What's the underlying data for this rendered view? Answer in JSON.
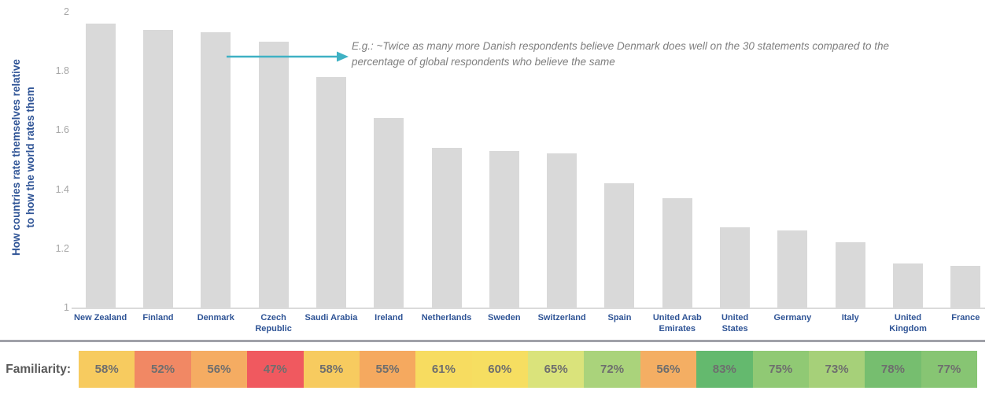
{
  "chart_data": {
    "type": "bar",
    "title": "",
    "ylabel_line1": "How countries rate themselves relative",
    "ylabel_line2": "to how the world rates them",
    "ylim": [
      1,
      2
    ],
    "yticks": [
      "2",
      "1.8",
      "1.6",
      "1.4",
      "1.2",
      "1"
    ],
    "grid": "off",
    "bar_color": "#D9D9D9",
    "categories": [
      "New Zealand",
      "Finland",
      "Denmark",
      "Czech\nRepublic",
      "Saudi Arabia",
      "Ireland",
      "Netherlands",
      "Sweden",
      "Switzerland",
      "Spain",
      "United Arab\nEmirates",
      "United\nStates",
      "Germany",
      "Italy",
      "United\nKingdom",
      "France"
    ],
    "values": [
      1.96,
      1.94,
      1.93,
      1.9,
      1.78,
      1.64,
      1.54,
      1.53,
      1.52,
      1.42,
      1.37,
      1.27,
      1.26,
      1.22,
      1.15,
      1.14
    ],
    "annotation": {
      "text": "E.g.: ~Twice as many more Danish respondents believe Denmark does well on the 30 statements compared to the percentage of global respondents who believe the same",
      "arrow_color": "#3FB1C4"
    },
    "familiarity": {
      "label": "Familiarity:",
      "values": [
        "58%",
        "52%",
        "56%",
        "47%",
        "58%",
        "55%",
        "61%",
        "60%",
        "65%",
        "72%",
        "56%",
        "83%",
        "75%",
        "73%",
        "78%",
        "77%"
      ],
      "colors": [
        "#F7CB5F",
        "#F18864",
        "#F5AC62",
        "#F0595F",
        "#F7CB5F",
        "#F5A95F",
        "#F7DC60",
        "#F6DE61",
        "#DAE37B",
        "#AAD37B",
        "#F4AE63",
        "#64B96E",
        "#90C974",
        "#A6D079",
        "#76BE6F",
        "#87C573"
      ]
    }
  }
}
